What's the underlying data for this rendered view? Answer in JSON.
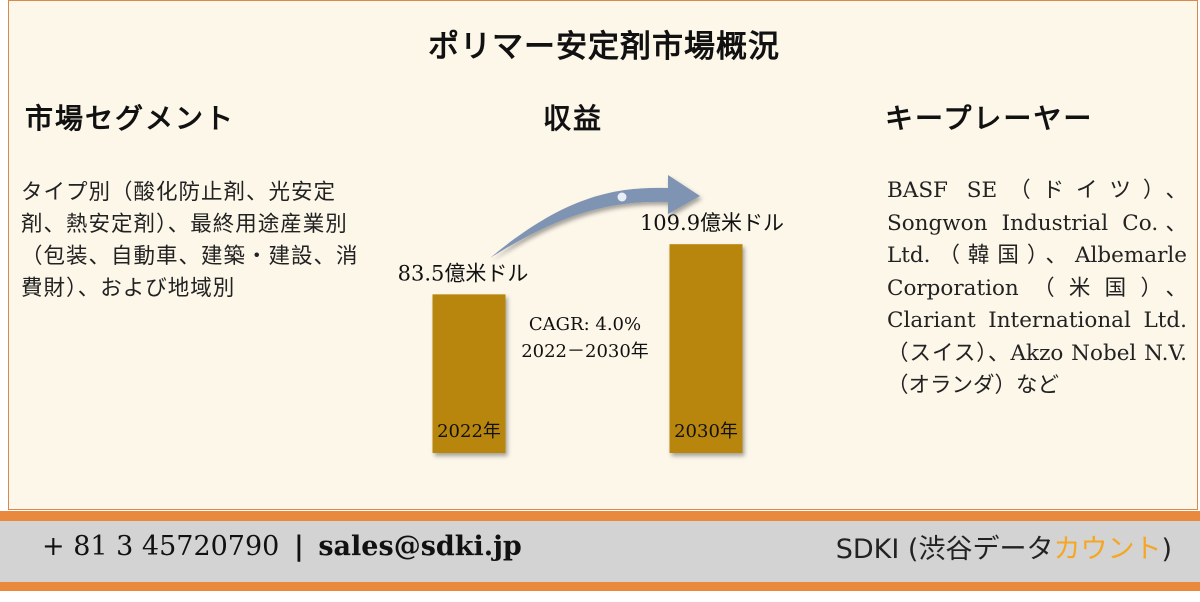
{
  "title": "ポリマー安定剤市場概況",
  "segments": {
    "heading": "市場セグメント",
    "text": "タイプ別（酸化防止剤、光安定剤、熱安定剤）、最終用途産業別（包装、自動車、建築・建設、消費財）、および地域別"
  },
  "revenue": {
    "heading": "収益"
  },
  "players": {
    "heading": "キープレーヤー",
    "text": "BASF SE（ドイツ）、Songwon Industrial Co.、Ltd.（韓国）、Albemarle Corporation（米国）、Clariant International Ltd.（スイス）、Akzo Nobel N.V.（オランダ）など"
  },
  "chart_data": {
    "type": "bar",
    "categories": [
      "2022年",
      "2030年"
    ],
    "values": [
      83.5,
      109.9
    ],
    "value_labels": [
      "83.5億米ドル",
      "109.9億米ドル"
    ],
    "unit": "億米ドル",
    "cagr_label": "CAGR: 4.0%",
    "cagr_period": "2022－2030年",
    "bar_color": "#b8860b",
    "arrow_color": "#7f93b3"
  },
  "footer": {
    "phone": "+ 81 3 45720790",
    "separator": "|",
    "email": "sales@sdki.jp",
    "brand_main": "SDKI (渋谷データ",
    "brand_accent": "カウント",
    "brand_close": ")",
    "accent_color": "#f5a623",
    "stripe_color": "#e9893e"
  }
}
